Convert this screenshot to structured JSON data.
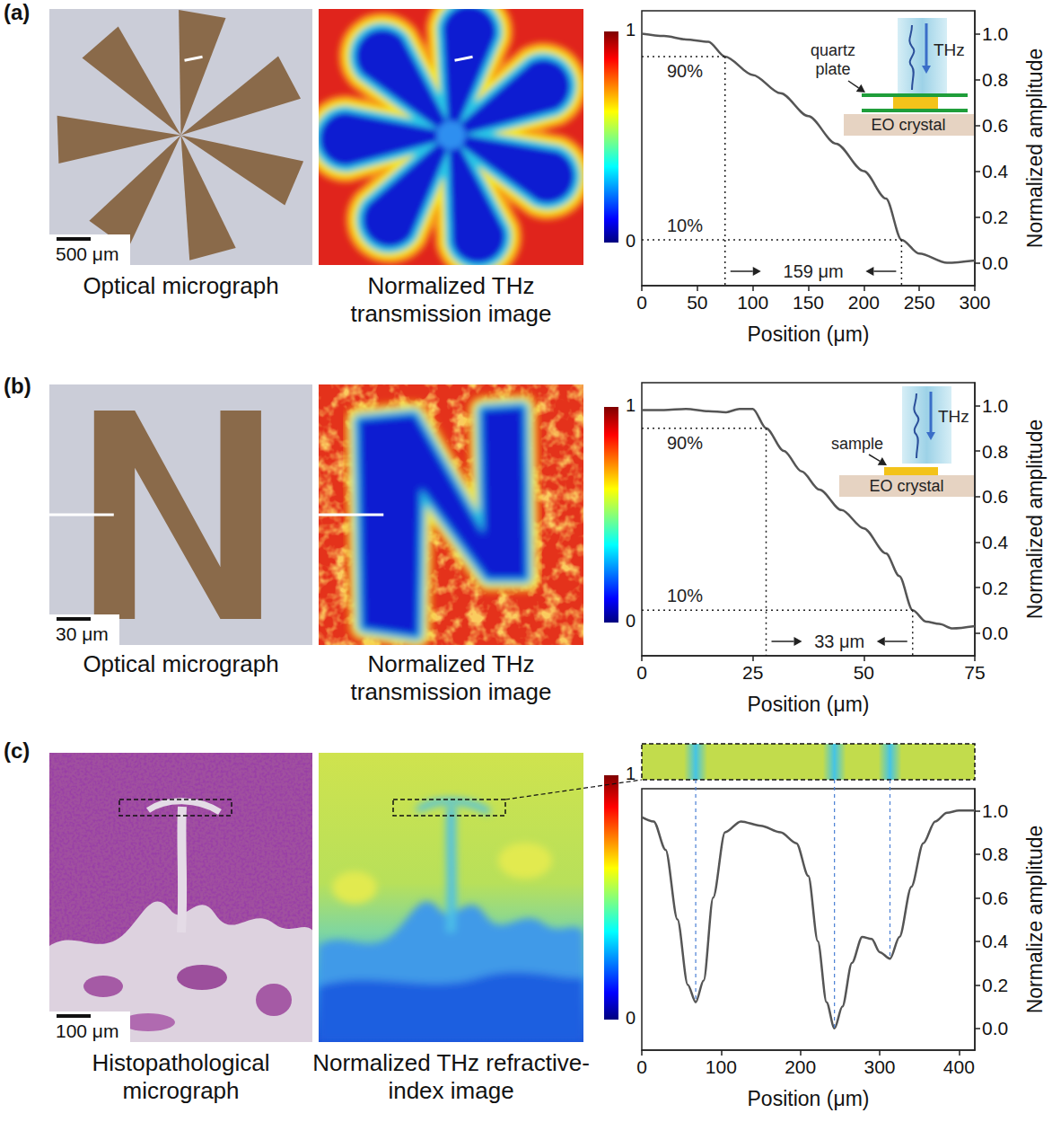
{
  "panels": [
    {
      "label": "(a)",
      "images": [
        {
          "caption": "Optical micrograph",
          "scale_bar": "500 μm"
        },
        {
          "caption": "Normalized THz transmission image"
        }
      ],
      "colorbar": {
        "range": [
          0,
          1
        ],
        "ticks": [
          0,
          1
        ]
      },
      "inset": {
        "beam": "THz",
        "layer": "quartz plate",
        "substrate": "EO crystal"
      }
    },
    {
      "label": "(b)",
      "images": [
        {
          "caption": "Optical micrograph",
          "scale_bar": "30 μm"
        },
        {
          "caption": "Normalized THz transmission image"
        }
      ],
      "colorbar": {
        "range": [
          0,
          1
        ],
        "ticks": [
          0,
          1
        ]
      },
      "inset": {
        "beam": "THz",
        "layer": "sample",
        "substrate": "EO crystal"
      }
    },
    {
      "label": "(c)",
      "images": [
        {
          "caption": "Histopathological micrograph",
          "scale_bar": "100 μm"
        },
        {
          "caption": "Normalized THz refractive-index image"
        }
      ],
      "colorbar": {
        "range": [
          0,
          1
        ],
        "ticks": [
          0,
          1
        ]
      }
    }
  ],
  "chart_data": [
    {
      "type": "line",
      "x_label": "Position (μm)",
      "y_label": "Normalized amplitude",
      "xlim": [
        0,
        300
      ],
      "xticks": [
        0,
        50,
        100,
        150,
        200,
        250,
        300
      ],
      "ylim": [
        -0.1,
        1.1
      ],
      "yticks": [
        {
          "value": 0,
          "label": "0.0"
        },
        0.2,
        0.4,
        0.6,
        0.8,
        {
          "value": 1,
          "label": "1.0"
        }
      ],
      "grid": false,
      "color": "#555555",
      "x": [
        0,
        20,
        40,
        60,
        75,
        100,
        125,
        150,
        175,
        200,
        220,
        234,
        250,
        275,
        300
      ],
      "values": [
        1.0,
        0.99,
        0.975,
        0.965,
        0.9,
        0.82,
        0.74,
        0.64,
        0.52,
        0.4,
        0.28,
        0.1,
        0.04,
        0.0,
        0.01
      ],
      "annotations": {
        "thresholds": [
          {
            "label": "90%",
            "x": 75,
            "y": 0.9
          },
          {
            "label": "10%",
            "x": 234,
            "y": 0.1
          }
        ],
        "width_label": "159 μm"
      }
    },
    {
      "type": "line",
      "x_label": "Position (μm)",
      "y_label": "Normalized amplitude",
      "xlim": [
        0,
        75
      ],
      "xticks": [
        0,
        25,
        50,
        75
      ],
      "ylim": [
        -0.1,
        1.1
      ],
      "yticks": [
        {
          "value": 0,
          "label": "0.0"
        },
        0.2,
        0.4,
        0.6,
        0.8,
        {
          "value": 1,
          "label": "1.0"
        }
      ],
      "grid": false,
      "color": "#555555",
      "x": [
        0,
        5,
        10,
        15,
        19,
        22,
        25,
        28,
        32,
        36,
        40,
        45,
        50,
        55,
        58,
        61,
        64,
        67,
        70,
        75
      ],
      "values": [
        0.98,
        0.98,
        0.985,
        0.975,
        0.97,
        0.985,
        0.985,
        0.9,
        0.8,
        0.71,
        0.63,
        0.54,
        0.46,
        0.35,
        0.25,
        0.1,
        0.05,
        0.04,
        0.02,
        0.03
      ],
      "annotations": {
        "thresholds": [
          {
            "label": "90%",
            "x": 28,
            "y": 0.9
          },
          {
            "label": "10%",
            "x": 61,
            "y": 0.1
          }
        ],
        "width_label": "33 μm"
      }
    },
    {
      "type": "line",
      "x_label": "Position (μm)",
      "y_label": "Normalize amplitude",
      "xlim": [
        0,
        420
      ],
      "xticks": [
        0,
        100,
        200,
        300,
        400
      ],
      "ylim": [
        -0.1,
        1.1
      ],
      "yticks": [
        {
          "value": 0,
          "label": "0.0"
        },
        0.2,
        0.4,
        0.6,
        0.8,
        {
          "value": 1,
          "label": "1.0"
        }
      ],
      "grid": false,
      "color": "#555555",
      "x": [
        0,
        15,
        30,
        45,
        58,
        68,
        78,
        90,
        105,
        125,
        150,
        175,
        195,
        210,
        222,
        233,
        243,
        253,
        265,
        278,
        290,
        300,
        313,
        325,
        340,
        355,
        370,
        385,
        400,
        420
      ],
      "values": [
        0.97,
        0.95,
        0.82,
        0.5,
        0.2,
        0.12,
        0.22,
        0.6,
        0.9,
        0.95,
        0.93,
        0.9,
        0.85,
        0.7,
        0.4,
        0.12,
        0.0,
        0.1,
        0.3,
        0.42,
        0.41,
        0.35,
        0.32,
        0.42,
        0.65,
        0.85,
        0.95,
        0.99,
        1.0,
        1.0
      ],
      "annotations": {
        "minima": [
          68,
          243,
          313
        ]
      }
    }
  ]
}
